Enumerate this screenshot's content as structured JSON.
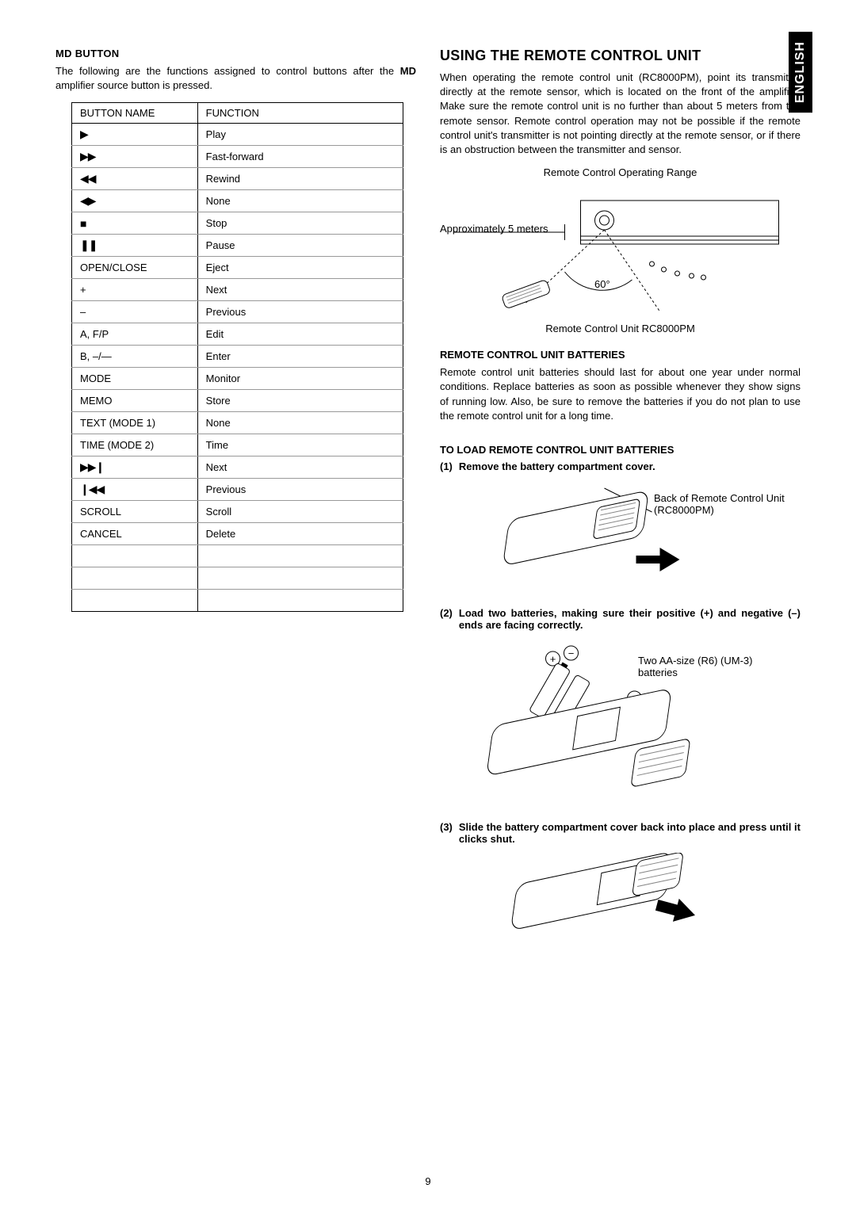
{
  "language_tab": "ENGLISH",
  "page_number": "9",
  "left": {
    "heading": "MD BUTTON",
    "intro_pre": "The following are the functions assigned to control buttons after the ",
    "intro_bold": "MD",
    "intro_post": " amplifier source button is pressed.",
    "table": {
      "col1": "BUTTON NAME",
      "col2": "FUNCTION",
      "rows": [
        {
          "name": "▶",
          "func": "Play",
          "sym": true
        },
        {
          "name": "▶▶",
          "func": "Fast-forward",
          "sym": true
        },
        {
          "name": "◀◀",
          "func": "Rewind",
          "sym": true
        },
        {
          "name": "◀▶",
          "func": "None",
          "sym": true
        },
        {
          "name": "■",
          "func": "Stop",
          "sym": true
        },
        {
          "name": "❚❚",
          "func": "Pause",
          "sym": true
        },
        {
          "name": "OPEN/CLOSE",
          "func": "Eject"
        },
        {
          "name": "+",
          "func": "Next"
        },
        {
          "name": "–",
          "func": "Previous"
        },
        {
          "name": "A, F/P",
          "func": "Edit"
        },
        {
          "name": "B, –/—",
          "func": "Enter"
        },
        {
          "name": "MODE",
          "func": "Monitor"
        },
        {
          "name": "MEMO",
          "func": "Store"
        },
        {
          "name": "TEXT (MODE 1)",
          "func": "None"
        },
        {
          "name": "TIME (MODE 2)",
          "func": "Time"
        },
        {
          "name": "▶▶❙",
          "func": "Next",
          "sym": true
        },
        {
          "name": "❙◀◀",
          "func": "Previous",
          "sym": true
        },
        {
          "name": "SCROLL",
          "func": "Scroll"
        },
        {
          "name": "CANCEL",
          "func": "Delete"
        },
        {
          "name": "",
          "func": ""
        },
        {
          "name": "",
          "func": ""
        },
        {
          "name": "",
          "func": ""
        }
      ]
    }
  },
  "right": {
    "title": "USING THE REMOTE CONTROL UNIT",
    "intro": "When operating the remote control unit (RC8000PM), point its transmitter directly at the remote sensor, which is located on the front of the amplifier. Make sure the remote control unit is no further than about 5 meters from the remote sensor. Remote control operation may not be possible if the remote control unit's transmitter is not pointing directly at the remote sensor, or if there is an obstruction between the transmitter and sensor.",
    "range_diagram": {
      "caption": "Remote Control Operating Range",
      "distance_label": "Approximately 5 meters",
      "angle_label": "60°",
      "unit_label": "Remote Control Unit RC8000PM"
    },
    "batteries": {
      "heading": "REMOTE CONTROL UNIT BATTERIES",
      "text": "Remote control unit batteries should last for about one year under normal conditions. Replace batteries as soon as possible whenever they show signs of running low. Also, be sure to remove the batteries if you do not plan to use the remote control unit for a long time."
    },
    "load_heading": "TO LOAD REMOTE CONTROL UNIT BATTERIES",
    "steps": [
      {
        "num": "(1)",
        "text": "Remove the battery compartment cover.",
        "fig_label": "Back of Remote Control Unit (RC8000PM)"
      },
      {
        "num": "(2)",
        "text": "Load two batteries, making sure their positive (+) and negative (–) ends are facing correctly.",
        "fig_label": "Two AA-size (R6) (UM-3) batteries"
      },
      {
        "num": "(3)",
        "text": "Slide the battery compartment cover back into place and press until it clicks shut.",
        "fig_label": ""
      }
    ]
  }
}
